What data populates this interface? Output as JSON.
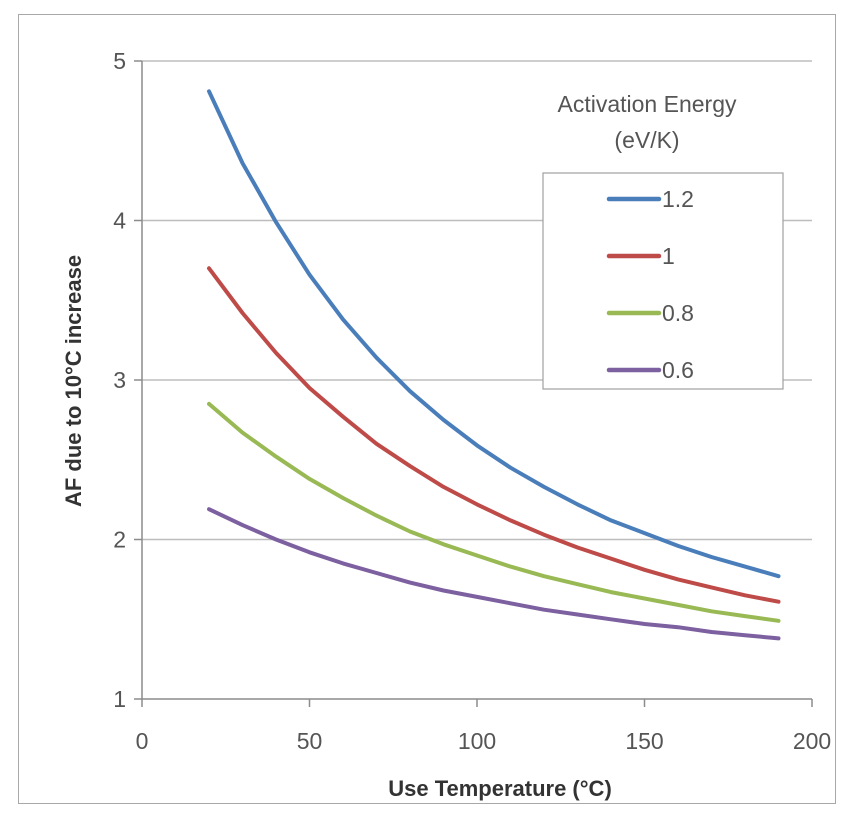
{
  "chart_data": {
    "type": "line",
    "xlabel": "Use Temperature (°C)",
    "ylabel": "AF due to 10°C increase",
    "xlim": [
      0,
      200
    ],
    "ylim": [
      1,
      5
    ],
    "xticks": [
      "0",
      "50",
      "100",
      "150",
      "200"
    ],
    "yticks": [
      "1",
      "2",
      "3",
      "4",
      "5"
    ],
    "grid": "horizontal",
    "legend": {
      "title": [
        "Activation Energy",
        "(eV/K)"
      ],
      "placement": "top-right"
    },
    "series": [
      {
        "name": "1.2",
        "color": "#4a7ebb",
        "x": [
          20,
          30,
          40,
          50,
          60,
          70,
          80,
          90,
          100,
          110,
          120,
          130,
          140,
          150,
          160,
          170,
          180,
          190
        ],
        "y": [
          4.81,
          4.36,
          3.99,
          3.66,
          3.38,
          3.14,
          2.93,
          2.75,
          2.59,
          2.45,
          2.33,
          2.22,
          2.12,
          2.04,
          1.96,
          1.89,
          1.83,
          1.77
        ]
      },
      {
        "name": "1",
        "color": "#be4b48",
        "x": [
          20,
          30,
          40,
          50,
          60,
          70,
          80,
          90,
          100,
          110,
          120,
          130,
          140,
          150,
          160,
          170,
          180,
          190
        ],
        "y": [
          3.7,
          3.42,
          3.17,
          2.95,
          2.77,
          2.6,
          2.46,
          2.33,
          2.22,
          2.12,
          2.03,
          1.95,
          1.88,
          1.81,
          1.75,
          1.7,
          1.65,
          1.61
        ]
      },
      {
        "name": "0.8",
        "color": "#98b954",
        "x": [
          20,
          30,
          40,
          50,
          60,
          70,
          80,
          90,
          100,
          110,
          120,
          130,
          140,
          150,
          160,
          170,
          180,
          190
        ],
        "y": [
          2.85,
          2.67,
          2.52,
          2.38,
          2.26,
          2.15,
          2.05,
          1.97,
          1.9,
          1.83,
          1.77,
          1.72,
          1.67,
          1.63,
          1.59,
          1.55,
          1.52,
          1.49
        ]
      },
      {
        "name": "0.6",
        "color": "#7d60a0",
        "x": [
          20,
          30,
          40,
          50,
          60,
          70,
          80,
          90,
          100,
          110,
          120,
          130,
          140,
          150,
          160,
          170,
          180,
          190
        ],
        "y": [
          2.19,
          2.09,
          2.0,
          1.92,
          1.85,
          1.79,
          1.73,
          1.68,
          1.64,
          1.6,
          1.56,
          1.53,
          1.5,
          1.47,
          1.45,
          1.42,
          1.4,
          1.38
        ]
      }
    ]
  }
}
